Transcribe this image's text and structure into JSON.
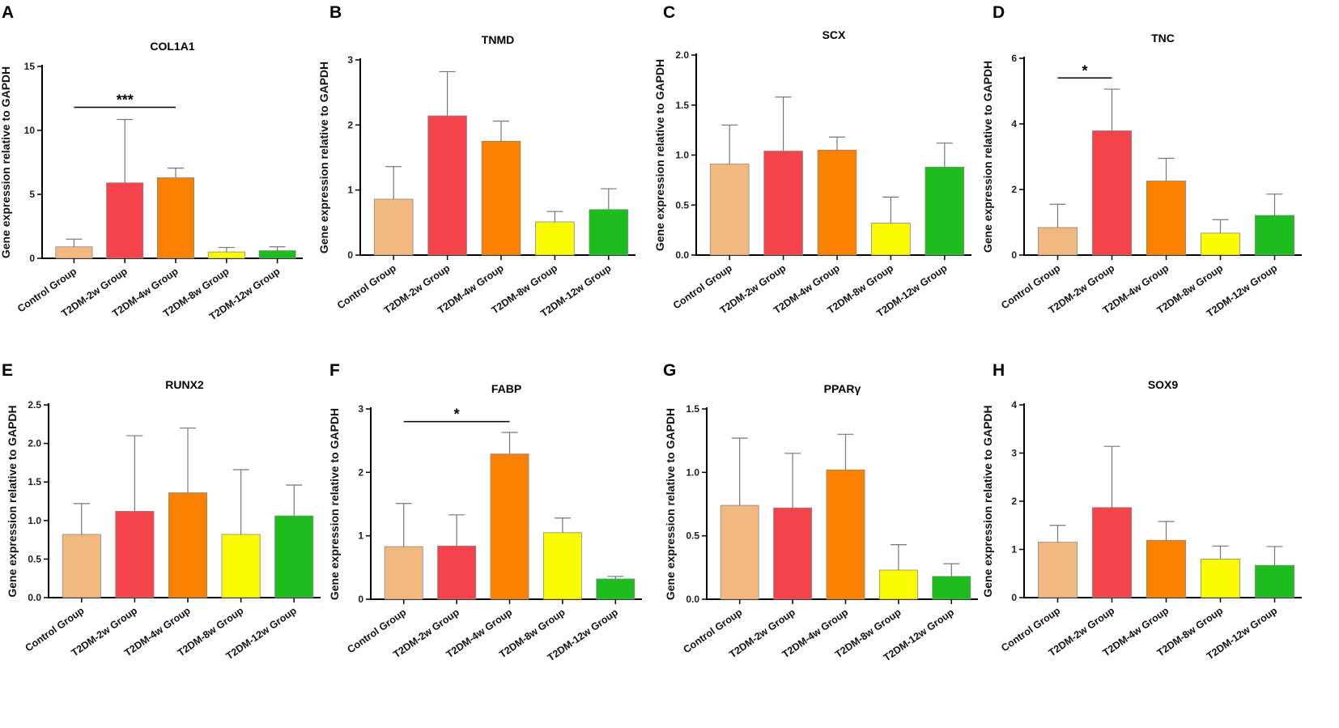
{
  "figure": {
    "y_axis_label": "Gene expression relative to GAPDH",
    "categories": [
      "Control Group",
      "T2DM-2w Group",
      "T2DM-4w Group",
      "T2DM-8w Group",
      "T2DM-12w Group"
    ],
    "bar_colors": [
      "#f2b880",
      "#f4434a",
      "#fb8100",
      "#fafa00",
      "#1cbd1c"
    ]
  },
  "chart_data": [
    {
      "panel": "A",
      "type": "bar",
      "title": "COL1A1",
      "ylabel": "Gene expression relative to GAPDH",
      "ylim": [
        0,
        15
      ],
      "yticks": [
        0,
        5,
        10,
        15
      ],
      "ytick_labels": [
        "0",
        "5",
        "10",
        "15"
      ],
      "categories": [
        "Control Group",
        "T2DM-2w Group",
        "T2DM-4w Group",
        "T2DM-8w Group",
        "T2DM-12w Group"
      ],
      "values": [
        0.9,
        5.9,
        6.3,
        0.5,
        0.6
      ],
      "errors": [
        0.6,
        4.95,
        0.75,
        0.35,
        0.3
      ],
      "significance": [
        {
          "from": 0,
          "to": 2,
          "label": "***",
          "y": 11.8
        }
      ]
    },
    {
      "panel": "B",
      "type": "bar",
      "title": "TNMD",
      "ylabel": "Gene expression relative to GAPDH",
      "ylim": [
        0,
        3
      ],
      "yticks": [
        0,
        1,
        2,
        3
      ],
      "ytick_labels": [
        "0",
        "1",
        "2",
        "3"
      ],
      "categories": [
        "Control Group",
        "T2DM-2w Group",
        "T2DM-4w Group",
        "T2DM-8w Group",
        "T2DM-12w Group"
      ],
      "values": [
        0.86,
        2.14,
        1.75,
        0.51,
        0.7
      ],
      "errors": [
        0.5,
        0.68,
        0.31,
        0.16,
        0.32
      ],
      "significance": []
    },
    {
      "panel": "C",
      "type": "bar",
      "title": "SCX",
      "ylabel": "Gene expression relative to GAPDH",
      "ylim": [
        0,
        2.0
      ],
      "yticks": [
        0,
        0.5,
        1.0,
        1.5,
        2.0
      ],
      "ytick_labels": [
        "0.0",
        "0.5",
        "1.0",
        "1.5",
        "2.0"
      ],
      "categories": [
        "Control Group",
        "T2DM-2w Group",
        "T2DM-4w Group",
        "T2DM-8w Group",
        "T2DM-12w Group"
      ],
      "values": [
        0.91,
        1.04,
        1.05,
        0.32,
        0.88
      ],
      "errors": [
        0.39,
        0.54,
        0.13,
        0.26,
        0.24
      ],
      "significance": []
    },
    {
      "panel": "D",
      "type": "bar",
      "title": "TNC",
      "ylabel": "Gene expression relative to GAPDH",
      "ylim": [
        0,
        6
      ],
      "yticks": [
        0,
        2,
        4,
        6
      ],
      "ytick_labels": [
        "0",
        "2",
        "4",
        "6"
      ],
      "categories": [
        "Control Group",
        "T2DM-2w Group",
        "T2DM-4w Group",
        "T2DM-8w Group",
        "T2DM-12w Group"
      ],
      "values": [
        0.84,
        3.79,
        2.26,
        0.67,
        1.21
      ],
      "errors": [
        0.71,
        1.27,
        0.69,
        0.41,
        0.65
      ],
      "significance": [
        {
          "from": 0,
          "to": 1,
          "label": "*",
          "y": 5.4
        }
      ]
    },
    {
      "panel": "E",
      "type": "bar",
      "title": "RUNX2",
      "ylabel": "Gene expression relative to GAPDH",
      "ylim": [
        0,
        2.5
      ],
      "yticks": [
        0,
        0.5,
        1.0,
        1.5,
        2.0,
        2.5
      ],
      "ytick_labels": [
        "0.0",
        "0.5",
        "1.0",
        "1.5",
        "2.0",
        "2.5"
      ],
      "categories": [
        "Control Group",
        "T2DM-2w Group",
        "T2DM-4w Group",
        "T2DM-8w Group",
        "T2DM-12w Group"
      ],
      "values": [
        0.82,
        1.12,
        1.36,
        0.82,
        1.06
      ],
      "errors": [
        0.4,
        0.98,
        0.84,
        0.84,
        0.4
      ],
      "significance": []
    },
    {
      "panel": "F",
      "type": "bar",
      "title": "FABP",
      "ylabel": "Gene expression relative to GAPDH",
      "ylim": [
        0,
        3
      ],
      "yticks": [
        0,
        1,
        2,
        3
      ],
      "ytick_labels": [
        "0",
        "1",
        "2",
        "3"
      ],
      "categories": [
        "Control Group",
        "T2DM-2w Group",
        "T2DM-4w Group",
        "T2DM-8w Group",
        "T2DM-12w Group"
      ],
      "values": [
        0.83,
        0.84,
        2.29,
        1.05,
        0.32
      ],
      "errors": [
        0.68,
        0.49,
        0.34,
        0.23,
        0.04
      ],
      "significance": [
        {
          "from": 0,
          "to": 2,
          "label": "*",
          "y": 2.8
        }
      ]
    },
    {
      "panel": "G",
      "type": "bar",
      "title": "PPARγ",
      "ylabel": "Gene expression relative to GAPDH",
      "ylim": [
        0,
        1.5
      ],
      "yticks": [
        0,
        0.5,
        1.0,
        1.5
      ],
      "ytick_labels": [
        "0.0",
        "0.5",
        "1.0",
        "1.5"
      ],
      "categories": [
        "Control Group",
        "T2DM-2w Group",
        "T2DM-4w Group",
        "T2DM-8w Group",
        "T2DM-12w Group"
      ],
      "values": [
        0.74,
        0.72,
        1.02,
        0.23,
        0.18
      ],
      "errors": [
        0.53,
        0.43,
        0.28,
        0.2,
        0.1
      ],
      "significance": []
    },
    {
      "panel": "H",
      "type": "bar",
      "title": "SOX9",
      "ylabel": "Gene expression relative to GAPDH",
      "ylim": [
        0,
        4
      ],
      "yticks": [
        0,
        1,
        2,
        3,
        4
      ],
      "ytick_labels": [
        "0",
        "1",
        "2",
        "3",
        "4"
      ],
      "categories": [
        "Control Group",
        "T2DM-2w Group",
        "T2DM-4w Group",
        "T2DM-8w Group",
        "T2DM-12w Group"
      ],
      "values": [
        1.15,
        1.87,
        1.19,
        0.8,
        0.67
      ],
      "errors": [
        0.35,
        1.27,
        0.39,
        0.27,
        0.39
      ],
      "significance": []
    }
  ]
}
